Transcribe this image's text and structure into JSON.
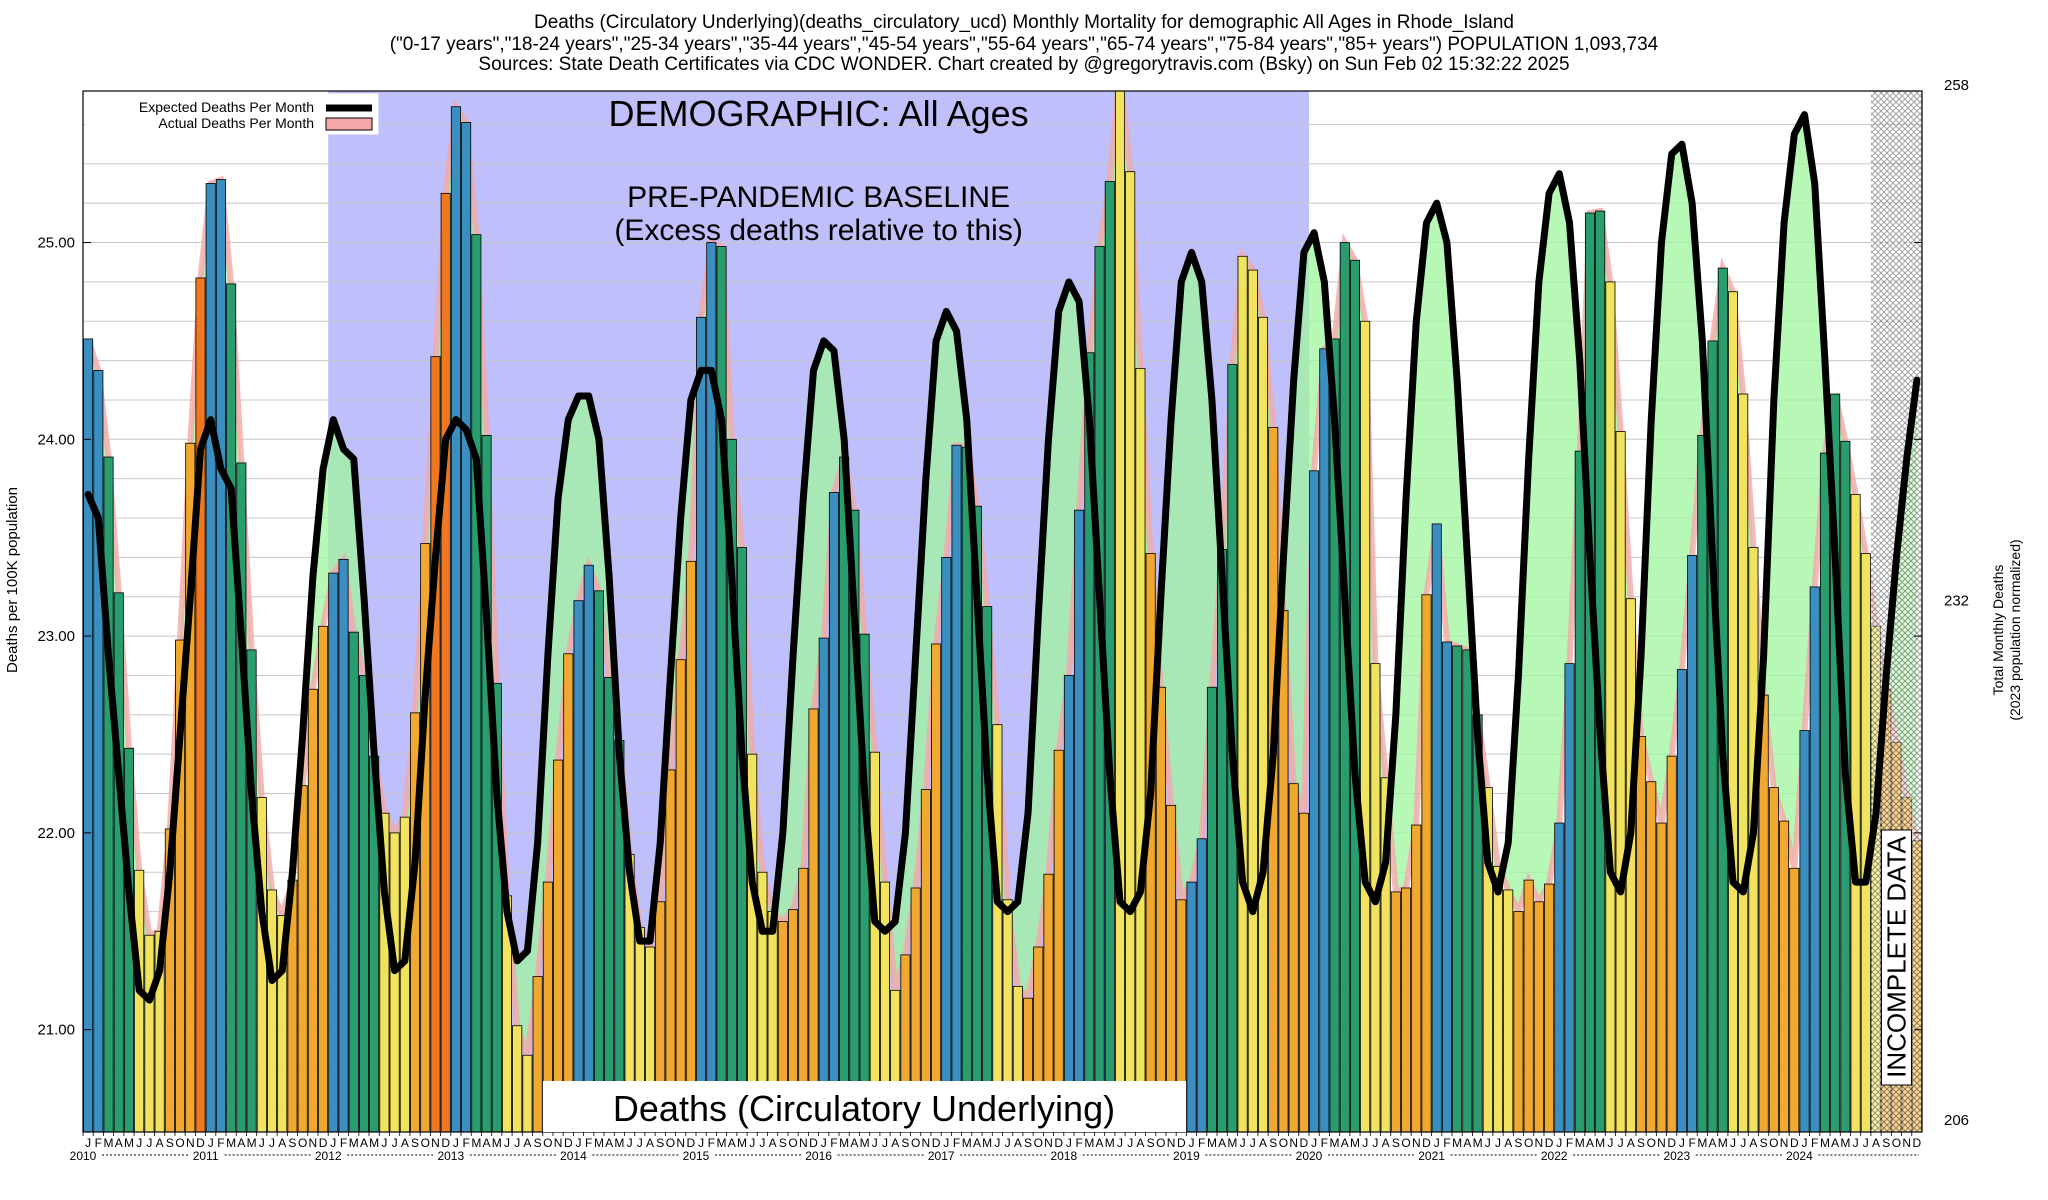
{
  "title": {
    "line1": "Deaths (Circulatory Underlying)(deaths_circulatory_ucd) Monthly Mortality for demographic All Ages in Rhode_Island",
    "line2": "(\"0-17 years\",\"18-24 years\",\"25-34 years\",\"35-44 years\",\"45-54 years\",\"55-64 years\",\"65-74 years\",\"75-84 years\",\"85+ years\") POPULATION 1,093,734",
    "line3": "Sources: State Death Certificates via CDC WONDER.              Chart created by @gregorytravis.com (Bsky) on Sun Feb 02 15:32:22 2025"
  },
  "annotations": {
    "demographic": "DEMOGRAPHIC: All Ages",
    "baseline_line1": "PRE-PANDEMIC BASELINE",
    "baseline_line2": "(Excess deaths relative to this)",
    "bottom_label": "Deaths (Circulatory Underlying)",
    "incomplete": "INCOMPLETE DATA"
  },
  "colors": {
    "baseline_shade": "#bfbffb",
    "excess_fill": "#9ff59f",
    "expected_line": "#000000",
    "actual_fill": "#f4a7a7",
    "winter_bar": "#3a8fc0",
    "spring_bar": "#2a9d6e",
    "summer_bar": "#f2e35e",
    "fall_bar": "#f0a830",
    "peak_bar": "#f07820"
  },
  "chart_data": {
    "type": "bar",
    "ylabel": "Deaths per 100K population",
    "y2label_line1": "Total Monthly Deaths",
    "y2label_line2": "(2023 population normalized)",
    "ylim": [
      20.48,
      25.77
    ],
    "yticks": [
      21.0,
      22.0,
      23.0,
      24.0,
      25.0
    ],
    "ytick_labels": [
      "21.00",
      "22.00",
      "23.00",
      "24.00",
      "25.00"
    ],
    "y2ticks": [
      206,
      232,
      258
    ],
    "y2tick_labels": [
      "206",
      "232",
      "258"
    ],
    "grid": true,
    "legend_position": "top-left",
    "start": "2010-01",
    "end": "2024-12",
    "baseline_period": [
      "2012-01",
      "2019-12"
    ],
    "incomplete_from": "2024-08",
    "month_letters": [
      "J",
      "F",
      "M",
      "A",
      "M",
      "J",
      "J",
      "A",
      "S",
      "O",
      "N",
      "D"
    ],
    "years": [
      "2010",
      "2011",
      "2012",
      "2013",
      "2014",
      "2015",
      "2016",
      "2017",
      "2018",
      "2019",
      "2020",
      "2021",
      "2022",
      "2023",
      "2024"
    ],
    "series": [
      {
        "name": "Expected Deaths Per Month",
        "style": "line",
        "values": [
          [
            23.72,
            23.6,
            22.9,
            22.3,
            21.7,
            21.2,
            21.15,
            21.3,
            21.8,
            22.5,
            23.2,
            23.95
          ],
          [
            24.1,
            23.85,
            23.75,
            23.0,
            22.2,
            21.6,
            21.25,
            21.3,
            21.8,
            22.5,
            23.3,
            23.85
          ],
          [
            24.1,
            23.95,
            23.9,
            23.2,
            22.4,
            21.7,
            21.3,
            21.35,
            21.85,
            22.7,
            23.4,
            24.0
          ],
          [
            24.1,
            24.05,
            23.9,
            23.1,
            22.2,
            21.6,
            21.35,
            21.4,
            21.95,
            22.9,
            23.7,
            24.1
          ],
          [
            24.22,
            24.22,
            24.0,
            23.3,
            22.4,
            21.8,
            21.45,
            21.45,
            21.95,
            22.8,
            23.6,
            24.2
          ],
          [
            24.35,
            24.35,
            24.1,
            23.3,
            22.4,
            21.75,
            21.5,
            21.5,
            22.0,
            22.9,
            23.7,
            24.35
          ],
          [
            24.5,
            24.45,
            24.0,
            23.1,
            22.2,
            21.55,
            21.5,
            21.55,
            22.0,
            22.9,
            23.8,
            24.5
          ],
          [
            24.65,
            24.55,
            24.1,
            23.2,
            22.3,
            21.65,
            21.6,
            21.65,
            22.1,
            23.1,
            24.0,
            24.65
          ],
          [
            24.8,
            24.7,
            24.1,
            23.2,
            22.3,
            21.65,
            21.6,
            21.7,
            22.2,
            23.2,
            24.1,
            24.8
          ],
          [
            24.95,
            24.8,
            24.2,
            23.3,
            22.4,
            21.75,
            21.6,
            21.8,
            22.4,
            23.4,
            24.3,
            24.95
          ],
          [
            25.05,
            24.8,
            24.1,
            23.2,
            22.3,
            21.75,
            21.65,
            21.85,
            22.6,
            23.7,
            24.6,
            25.1
          ],
          [
            25.2,
            25.0,
            24.3,
            23.4,
            22.5,
            21.85,
            21.7,
            21.95,
            22.8,
            23.9,
            24.8,
            25.25
          ],
          [
            25.35,
            25.1,
            24.4,
            23.4,
            22.5,
            21.8,
            21.7,
            22.0,
            22.9,
            24.1,
            25.0,
            25.45
          ],
          [
            25.5,
            25.2,
            24.5,
            23.4,
            22.4,
            21.75,
            21.7,
            22.0,
            22.9,
            24.2,
            25.1,
            25.55
          ],
          [
            25.65,
            25.3,
            24.4,
            23.4,
            22.3,
            21.75,
            21.75,
            22.1,
            22.8,
            23.4,
            23.9,
            24.3
          ]
        ]
      },
      {
        "name": "Actual Deaths Per Month",
        "style": "bars",
        "values": [
          [
            24.51,
            24.35,
            23.91,
            23.22,
            22.43,
            21.81,
            21.48,
            21.5,
            22.02,
            22.98,
            23.98,
            24.82
          ],
          [
            25.3,
            25.32,
            24.79,
            23.88,
            22.93,
            22.18,
            21.71,
            21.58,
            21.76,
            22.24,
            22.73,
            23.05
          ],
          [
            23.32,
            23.39,
            23.02,
            22.8,
            22.39,
            22.1,
            22.0,
            22.08,
            22.61,
            23.47,
            24.42,
            25.25
          ],
          [
            25.69,
            25.61,
            25.04,
            24.02,
            22.76,
            21.68,
            21.02,
            20.87,
            21.27,
            21.75,
            22.37,
            22.91
          ],
          [
            23.18,
            23.36,
            23.23,
            22.79,
            22.47,
            21.89,
            21.52,
            21.42,
            21.65,
            22.32,
            22.88,
            23.38
          ],
          [
            24.62,
            25.0,
            24.98,
            24.0,
            23.45,
            22.4,
            21.8,
            21.6,
            21.55,
            21.61,
            21.82,
            22.63
          ],
          [
            22.99,
            23.73,
            23.91,
            23.64,
            23.01,
            22.41,
            21.75,
            21.2,
            21.38,
            21.72,
            22.22,
            22.96
          ],
          [
            23.4,
            23.97,
            23.96,
            23.66,
            23.15,
            22.55,
            21.66,
            21.22,
            21.16,
            21.42,
            21.79,
            22.42
          ],
          [
            22.8,
            23.64,
            24.44,
            24.98,
            25.31,
            25.88,
            25.36,
            24.36,
            23.42,
            22.74,
            22.14,
            21.66
          ],
          [
            21.75,
            21.97,
            22.74,
            23.44,
            24.38,
            24.93,
            24.86,
            24.62,
            24.06,
            23.13,
            22.25,
            22.1
          ],
          [
            23.84,
            24.46,
            24.51,
            25.0,
            24.91,
            24.6,
            22.86,
            22.28,
            21.7,
            21.72,
            22.04,
            23.21
          ],
          [
            23.57,
            22.97,
            22.95,
            22.93,
            22.6,
            22.23,
            21.83,
            21.71,
            21.6,
            21.76,
            21.65,
            21.74
          ],
          [
            22.05,
            22.86,
            23.94,
            25.15,
            25.16,
            24.8,
            24.04,
            23.19,
            22.49,
            22.26,
            22.05,
            22.39
          ],
          [
            22.83,
            23.41,
            24.02,
            24.5,
            24.87,
            24.75,
            24.23,
            23.45,
            22.7,
            22.23,
            22.06,
            21.82
          ],
          [
            22.52,
            23.25,
            23.93,
            24.23,
            23.99,
            23.72,
            23.42,
            23.05,
            22.73,
            22.46,
            22.18,
            21.96
          ]
        ]
      }
    ]
  }
}
